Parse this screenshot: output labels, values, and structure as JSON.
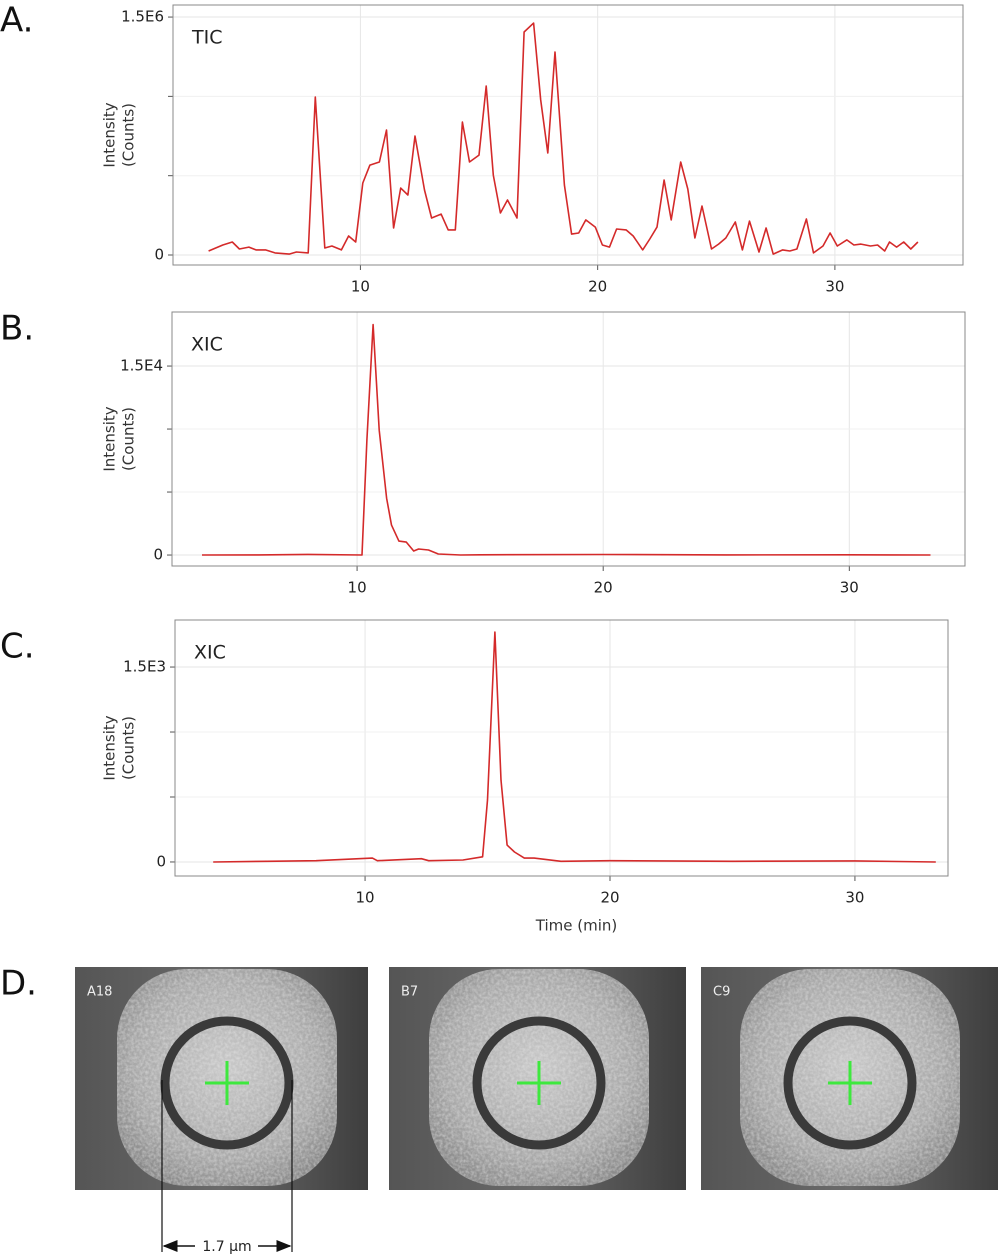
{
  "panel_labels": [
    "A.",
    "B.",
    "C.",
    "D."
  ],
  "chart_data": [
    {
      "type": "line",
      "annotation": "TIC",
      "y_label": [
        "Intensity",
        "(Counts)"
      ],
      "grid": true,
      "xlim": [
        2.1,
        35.4
      ],
      "xticks": [
        10,
        20,
        30
      ],
      "ylim": [
        -63000,
        1576000
      ],
      "yticks": [
        0,
        {
          "value": 1500000,
          "label": "1.5E6"
        }
      ],
      "yminor": [
        500000,
        1000000
      ],
      "series": [
        {
          "color": "#d42a2a",
          "x": [
            3.6,
            4.2,
            4.6,
            4.9,
            5.3,
            5.6,
            6.0,
            6.4,
            7.0,
            7.3,
            7.8,
            8.1,
            8.5,
            8.8,
            9.2,
            9.5,
            9.8,
            10.1,
            10.4,
            10.8,
            11.1,
            11.4,
            11.7,
            12.0,
            12.3,
            12.7,
            13.0,
            13.4,
            13.7,
            14.0,
            14.3,
            14.6,
            15.0,
            15.3,
            15.6,
            15.9,
            16.2,
            16.6,
            16.9,
            17.3,
            17.6,
            17.9,
            18.2,
            18.6,
            18.9,
            19.2,
            19.5,
            19.9,
            20.2,
            20.5,
            20.8,
            21.2,
            21.5,
            21.9,
            22.2,
            22.5,
            22.8,
            23.1,
            23.5,
            23.8,
            24.1,
            24.4,
            24.8,
            25.1,
            25.4,
            25.8,
            26.1,
            26.4,
            26.8,
            27.1,
            27.4,
            27.8,
            28.1,
            28.4,
            28.8,
            29.1,
            29.5,
            29.8,
            30.1,
            30.5,
            30.8,
            31.1,
            31.5,
            31.8,
            32.1,
            32.3,
            32.6,
            32.9,
            33.2,
            33.5
          ],
          "values": [
            25000,
            63000,
            82000,
            38000,
            50000,
            32000,
            32000,
            13000,
            6000,
            19000,
            13000,
            996000,
            44000,
            57000,
            32000,
            120000,
            82000,
            454000,
            567000,
            586000,
            788000,
            170000,
            422000,
            378000,
            750000,
            410000,
            233000,
            258000,
            158000,
            158000,
            838000,
            586000,
            630000,
            1065000,
            504000,
            265000,
            347000,
            233000,
            1406000,
            1462000,
            977000,
            643000,
            1280000,
            441000,
            132000,
            139000,
            221000,
            176000,
            63000,
            50000,
            164000,
            158000,
            120000,
            32000,
            101000,
            176000,
            473000,
            221000,
            586000,
            416000,
            107000,
            309000,
            38000,
            69000,
            107000,
            208000,
            32000,
            214000,
            19000,
            170000,
            6000,
            32000,
            25000,
            38000,
            227000,
            13000,
            57000,
            139000,
            57000,
            95000,
            63000,
            69000,
            57000,
            63000,
            25000,
            82000,
            50000,
            82000,
            38000,
            82000
          ]
        }
      ]
    },
    {
      "type": "line",
      "annotation": "XIC",
      "y_label": [
        "Intensity",
        "(Counts)"
      ],
      "grid": true,
      "xlim": [
        2.48,
        34.7
      ],
      "xticks": [
        10,
        20,
        30
      ],
      "ylim": [
        -870,
        19290
      ],
      "yticks": [
        0,
        {
          "value": 15000,
          "label": "1.5E4"
        }
      ],
      "yminor": [
        5000,
        10000
      ],
      "series": [
        {
          "color": "#d42a2a",
          "x": [
            3.7,
            6,
            8,
            10.2,
            10.4,
            10.65,
            10.9,
            11.2,
            11.4,
            11.7,
            12.0,
            12.3,
            12.5,
            12.9,
            13.3,
            14.2,
            15,
            20,
            25,
            30,
            33.3
          ],
          "values": [
            0,
            10,
            50,
            0,
            9130,
            18300,
            9920,
            4520,
            2380,
            1110,
            1030,
            320,
            480,
            400,
            80,
            0,
            20,
            40,
            10,
            20,
            0
          ]
        }
      ]
    },
    {
      "type": "line",
      "annotation": "XIC",
      "y_label": [
        "Intensity",
        "(Counts)"
      ],
      "x_label": "Time (min)",
      "grid": true,
      "xlim": [
        2.24,
        33.8
      ],
      "xticks": [
        10,
        20,
        30
      ],
      "ylim": [
        -108,
        1862
      ],
      "yticks": [
        0,
        {
          "value": 1500,
          "label": "1.5E3"
        }
      ],
      "yminor": [
        500,
        1000
      ],
      "series": [
        {
          "color": "#d42a2a",
          "x": [
            3.8,
            6,
            8,
            10.3,
            10.5,
            12.3,
            12.6,
            14,
            14.8,
            15.0,
            15.3,
            15.55,
            15.8,
            16.1,
            16.5,
            16.9,
            18,
            20,
            25,
            30,
            33.3
          ],
          "values": [
            0,
            5,
            10,
            30,
            10,
            25,
            10,
            15,
            40,
            477,
            1770,
            630,
            130,
            77,
            30,
            30,
            5,
            10,
            5,
            8,
            0
          ]
        }
      ]
    }
  ],
  "images": {
    "labels": [
      "A18",
      "B7",
      "C9"
    ],
    "scale_bar": "1.7 µm"
  }
}
